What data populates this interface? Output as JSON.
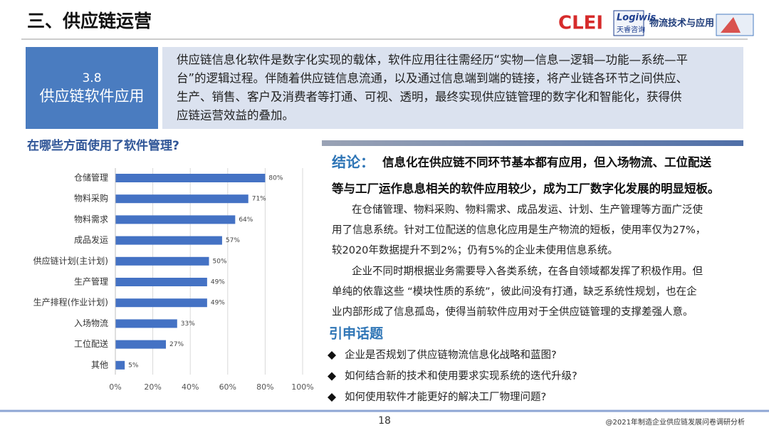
{
  "header": {
    "title": "三、供应链运营",
    "logos": [
      "CLEI",
      "Logiwis",
      "天睿咨询",
      "物流技术与应用"
    ]
  },
  "section": {
    "number": "3.8",
    "name": "供应链软件应用"
  },
  "intro": {
    "lines": [
      "供应链信息化软件是数字化实现的载体，软件应用往往需经历“实物—信息—逻辑—功能—系统—平",
      "台”的逻辑过程。伴随着供应链信息流通，以及通过信息端到端的链接，将产业链各环节之间供应、",
      "生产、销售、客户及消费者等打通、可视、透明，最终实现供应链管理的数字化和智能化，获得供",
      "应链运营效益的叠加。"
    ]
  },
  "chart_data": {
    "type": "hbar",
    "title": "在哪些方面使用了软件管理?",
    "categories": [
      "仓储管理",
      "物料采购",
      "物料需求",
      "成品发运",
      "供应链计划(主计划)",
      "生产管理",
      "生产排程(作业计划)",
      "入场物流",
      "工位配送",
      "其他"
    ],
    "values": [
      80,
      71,
      64,
      57,
      50,
      49,
      49,
      33,
      27,
      5
    ],
    "value_labels": [
      "80%",
      "71%",
      "64%",
      "57%",
      "50%",
      "49%",
      "49%",
      "33%",
      "27%",
      "5%"
    ],
    "color": "#4472c4",
    "xlim": [
      0,
      100
    ],
    "xticks": [
      {
        "value": 0,
        "label": "0%"
      },
      {
        "value": 20,
        "label": "20%"
      },
      {
        "value": 40,
        "label": "40%"
      },
      {
        "value": 60,
        "label": "60%"
      },
      {
        "value": 80,
        "label": "80%"
      },
      {
        "value": 100,
        "label": "100%"
      }
    ],
    "grid": true
  },
  "conclusion": {
    "heading": "结论：",
    "lines": [
      "信息化在供应链不同环节基本都有应用，但入场物流、工位配送",
      "等与工厂运作息息相关的软件应用较少，成为工厂数字化发展的明显短板。"
    ]
  },
  "body": {
    "paragraphs": [
      [
        "在仓储管理、物料采购、物料需求、成品发运、计划、生产管理等方面广泛使",
        "用了信息系统。针对工位配送的信息化应用是生产物流的短板，使用率仅为27%，",
        "较2020年数据提升不到2%；仍有5%的企业未使用信息系统。"
      ],
      [
        "企业不同时期根据业务需要导入各类系统，在各自领域都发挥了积极作用。但",
        "单纯的依靠这些 “模块性质的系统”，彼此间没有打通，缺乏系统性规划，也在企",
        "业内部形成了信息孤岛，使得当前软件应用对于全供应链管理的支撑差强人意。"
      ]
    ]
  },
  "topics": {
    "heading": "引申话题",
    "bullets": [
      "企业是否规划了供应链物流信息化战略和蓝图?",
      "如何结合新的技术和使用要求实现系统的迭代升级?",
      "如何使用软件才能更好的解决工厂物理问题?"
    ]
  },
  "footer": {
    "page": "18",
    "source": "@2021年制造企业供应链发展问卷调研分析"
  }
}
